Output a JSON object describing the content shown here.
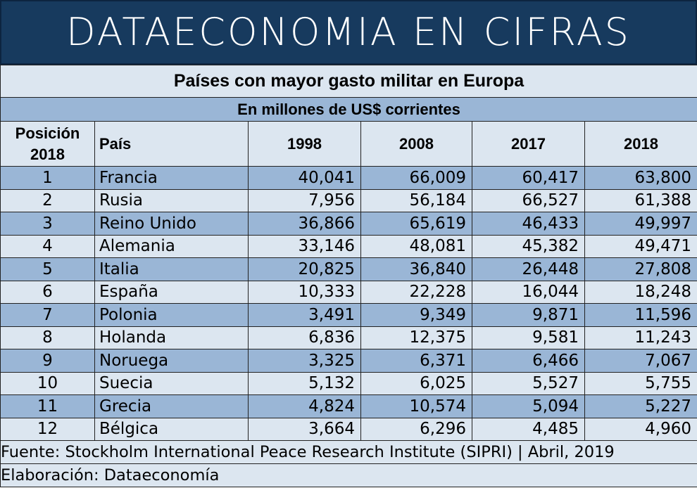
{
  "header": {
    "title": "DATAECONOMIA EN CIFRAS"
  },
  "chart_data": {
    "type": "table",
    "title": "Países con mayor gasto militar en Europa",
    "subtitle": "En millones de US$ corrientes",
    "columns": {
      "position": "Posición 2018",
      "country": "País",
      "years": [
        "1998",
        "2008",
        "2017",
        "2018"
      ]
    },
    "rows": [
      {
        "pos": "1",
        "country": "Francia",
        "values": [
          "40,041",
          "66,009",
          "60,417",
          "63,800"
        ]
      },
      {
        "pos": "2",
        "country": "Rusia",
        "values": [
          "7,956",
          "56,184",
          "66,527",
          "61,388"
        ]
      },
      {
        "pos": "3",
        "country": "Reino Unido",
        "values": [
          "36,866",
          "65,619",
          "46,433",
          "49,997"
        ]
      },
      {
        "pos": "4",
        "country": "Alemania",
        "values": [
          "33,146",
          "48,081",
          "45,382",
          "49,471"
        ]
      },
      {
        "pos": "5",
        "country": "Italia",
        "values": [
          "20,825",
          "36,840",
          "26,448",
          "27,808"
        ]
      },
      {
        "pos": "6",
        "country": "España",
        "values": [
          "10,333",
          "22,228",
          "16,044",
          "18,248"
        ]
      },
      {
        "pos": "7",
        "country": "Polonia",
        "values": [
          "3,491",
          "9,349",
          "9,871",
          "11,596"
        ]
      },
      {
        "pos": "8",
        "country": "Holanda",
        "values": [
          "6,836",
          "12,375",
          "9,581",
          "11,243"
        ]
      },
      {
        "pos": "9",
        "country": "Noruega",
        "values": [
          "3,325",
          "6,371",
          "6,466",
          "7,067"
        ]
      },
      {
        "pos": "10",
        "country": "Suecia",
        "values": [
          "5,132",
          "6,025",
          "5,527",
          "5,755"
        ]
      },
      {
        "pos": "11",
        "country": "Grecia",
        "values": [
          "4,824",
          "10,574",
          "5,094",
          "5,227"
        ]
      },
      {
        "pos": "12",
        "country": "Bélgica",
        "values": [
          "3,664",
          "6,296",
          "4,485",
          "4,960"
        ]
      }
    ],
    "source": "Fuente: Stockholm International Peace Research Institute (SIPRI) | Abril, 2019",
    "credit": "Elaboración: Dataeconomía"
  },
  "colors": {
    "header_bg": "#173a5e",
    "row_dark": "#9ab6d6",
    "row_light": "#dce6f0"
  }
}
